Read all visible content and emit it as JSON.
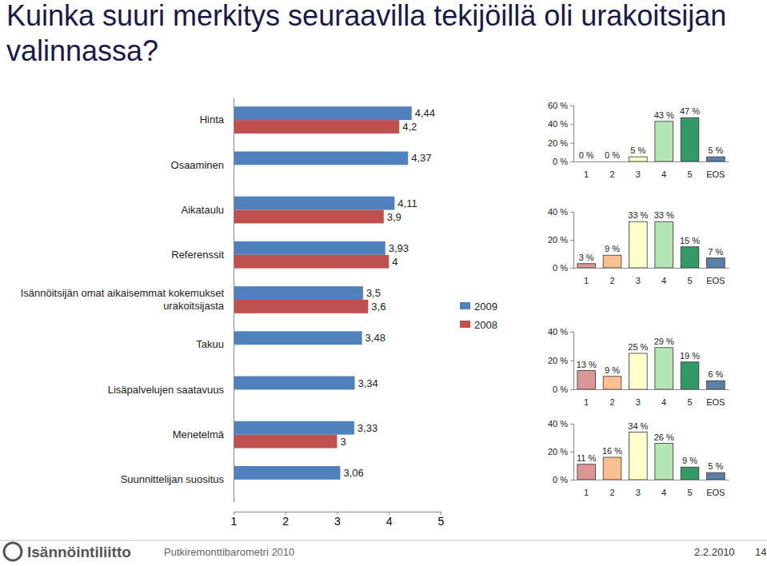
{
  "chart_data": [
    {
      "type": "bar",
      "orientation": "horizontal",
      "title": "Kuinka suuri merkitys seuraavilla tekijöillä oli urakoitsijan valinnassa?",
      "categories": [
        "Hinta",
        "Osaaminen",
        "Aikataulu",
        "Referenssit",
        "Isännöitsijän omat aikaisemmat kokemukset urakoitsijasta",
        "Takuu",
        "Lisäpalvelujen saatavuus",
        "Menetelmä",
        "Suunnittelijan suositus"
      ],
      "series": [
        {
          "name": "2009",
          "color": "#4f81bd",
          "values": [
            4.44,
            4.37,
            4.11,
            3.93,
            3.5,
            3.48,
            3.34,
            3.33,
            3.06
          ],
          "value_labels": [
            "4,44",
            "4,37",
            "4,11",
            "3,93",
            "3,5",
            "3,48",
            "3,34",
            "3,33",
            "3,06"
          ]
        },
        {
          "name": "2008",
          "color": "#c0504d",
          "values": [
            4.2,
            null,
            3.9,
            4,
            3.6,
            null,
            null,
            3,
            null
          ],
          "value_labels": [
            "4,2",
            null,
            "3,9",
            "4",
            "3,6",
            null,
            null,
            "3",
            null
          ]
        }
      ],
      "xlim": [
        1,
        5
      ],
      "xticks": [
        1,
        2,
        3,
        4,
        5
      ],
      "data_labels": true,
      "legend": "right"
    },
    {
      "type": "bar",
      "categories": [
        "1",
        "2",
        "3",
        "4",
        "5",
        "EOS"
      ],
      "values": [
        0,
        0,
        5,
        43,
        47,
        5
      ],
      "value_labels": [
        "0 %",
        "0 %",
        "5 %",
        "43 %",
        "47 %",
        "5 %"
      ],
      "colors": [
        "#d99694",
        "#fac090",
        "#ffffcc",
        "#b3e6b3",
        "#339966",
        "#5b7fa6"
      ],
      "ylim": [
        0,
        60
      ],
      "yticks": [
        {
          "value": 0,
          "label": "0 %"
        },
        {
          "value": 20,
          "label": "20 %"
        },
        {
          "value": 40,
          "label": "40 %"
        },
        {
          "value": 60,
          "label": "60 %"
        }
      ],
      "data_labels": true
    },
    {
      "type": "bar",
      "categories": [
        "1",
        "2",
        "3",
        "4",
        "5",
        "EOS"
      ],
      "values": [
        3,
        9,
        33,
        33,
        15,
        7
      ],
      "value_labels": [
        "3 %",
        "9 %",
        "33 %",
        "33 %",
        "15 %",
        "7 %"
      ],
      "colors": [
        "#d99694",
        "#fac090",
        "#ffffcc",
        "#b3e6b3",
        "#339966",
        "#5b7fa6"
      ],
      "ylim": [
        0,
        40
      ],
      "yticks": [
        {
          "value": 0,
          "label": "0 %"
        },
        {
          "value": 20,
          "label": "20 %"
        },
        {
          "value": 40,
          "label": "40 %"
        }
      ],
      "data_labels": true
    },
    {
      "type": "bar",
      "categories": [
        "1",
        "2",
        "3",
        "4",
        "5",
        "EOS"
      ],
      "values": [
        13,
        9,
        25,
        29,
        19,
        6
      ],
      "value_labels": [
        "13 %",
        "9 %",
        "25 %",
        "29 %",
        "19 %",
        "6 %"
      ],
      "colors": [
        "#d99694",
        "#fac090",
        "#ffffcc",
        "#b3e6b3",
        "#339966",
        "#5b7fa6"
      ],
      "ylim": [
        0,
        40
      ],
      "yticks": [
        {
          "value": 0,
          "label": "0 %"
        },
        {
          "value": 20,
          "label": "20 %"
        },
        {
          "value": 40,
          "label": "40 %"
        }
      ],
      "data_labels": true
    },
    {
      "type": "bar",
      "categories": [
        "1",
        "2",
        "3",
        "4",
        "5",
        "EOS"
      ],
      "values": [
        11,
        16,
        34,
        26,
        9,
        5
      ],
      "value_labels": [
        "11 %",
        "16 %",
        "34 %",
        "26 %",
        "9 %",
        "5 %"
      ],
      "colors": [
        "#d99694",
        "#fac090",
        "#ffffcc",
        "#b3e6b3",
        "#339966",
        "#5b7fa6"
      ],
      "ylim": [
        0,
        40
      ],
      "yticks": [
        {
          "value": 0,
          "label": "0 %"
        },
        {
          "value": 20,
          "label": "20 %"
        },
        {
          "value": 40,
          "label": "40 %"
        }
      ],
      "data_labels": true
    }
  ],
  "footer": {
    "logo": "Isännöintiliitto",
    "source": "Putkiremonttibarometri 2010",
    "date": "2.2.2010",
    "page": "14"
  }
}
